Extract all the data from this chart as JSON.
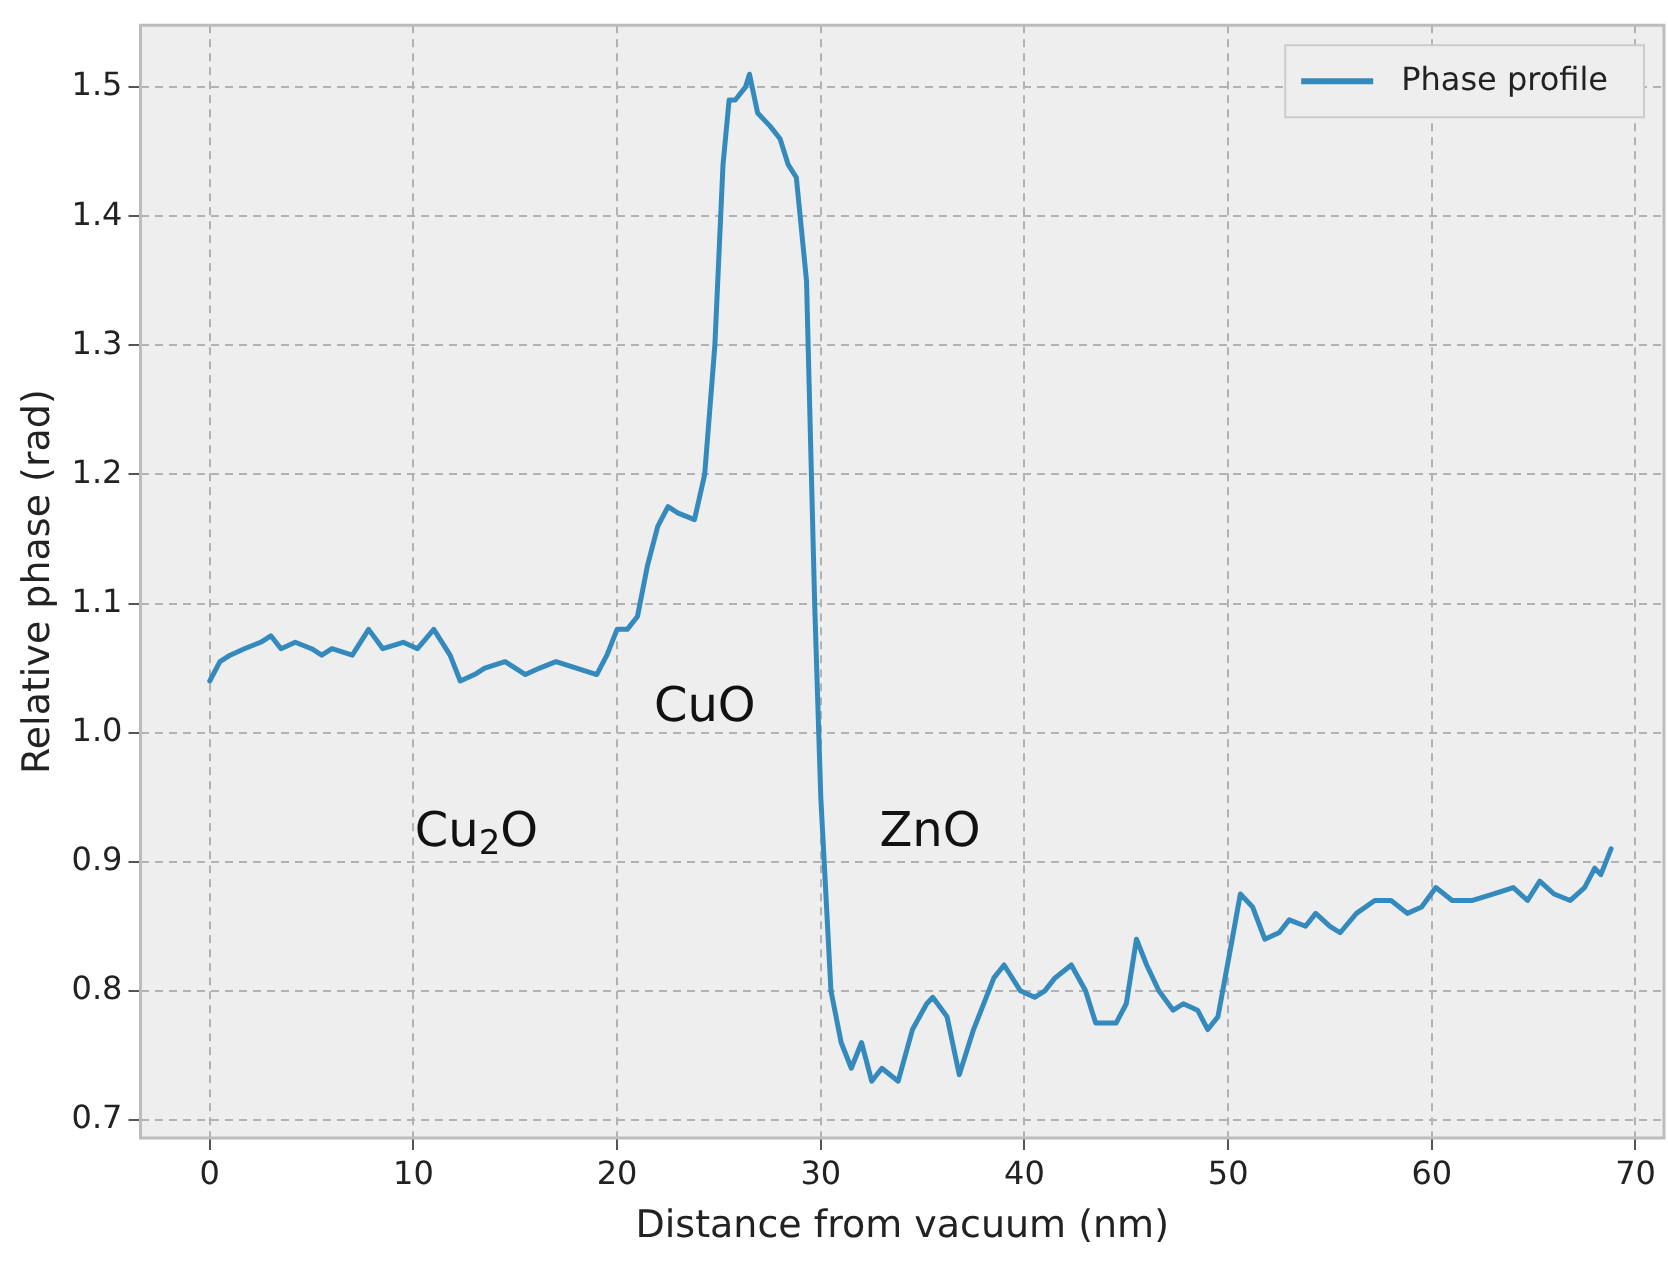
{
  "chart_data": {
    "type": "line",
    "xlabel": "Distance from vacuum (nm)",
    "ylabel": "Relative phase (rad)",
    "xlim": [
      -3.4,
      71.4
    ],
    "ylim": [
      0.686,
      1.548
    ],
    "xticks": [
      0,
      10,
      20,
      30,
      40,
      50,
      60,
      70
    ],
    "yticks": [
      0.7,
      0.8,
      0.9,
      {
        "value": 1,
        "label": "1.0"
      },
      1.1,
      1.2,
      1.3,
      1.4,
      1.5
    ],
    "grid": true,
    "legend": "top right",
    "line_style": "solid",
    "marker": "none",
    "annotations": [
      "Cu$_{2}$O",
      "CuO",
      "ZnO"
    ],
    "series": [
      {
        "name": "Phase profile",
        "color": "#348abd",
        "x": [
          0,
          0.5,
          1,
          1.7,
          2.5,
          3,
          3.5,
          4.2,
          5,
          5.5,
          6,
          7,
          7.8,
          8.5,
          9.5,
          10.2,
          11,
          11.8,
          12.3,
          13,
          13.5,
          14.5,
          15.5,
          16.2,
          17,
          18,
          19,
          19.5,
          20,
          20.5,
          21,
          21.5,
          22,
          22.5,
          23,
          23.8,
          24.3,
          24.8,
          25.2,
          25.5,
          25.8,
          26.3,
          26.5,
          26.9,
          27.5,
          28,
          28.4,
          28.8,
          29.3,
          29.7,
          30,
          30.5,
          31,
          31.5,
          32,
          32.5,
          33,
          33.8,
          34.5,
          35.2,
          35.5,
          36.2,
          36.8,
          37.5,
          38.5,
          39,
          39.8,
          40.5,
          41,
          41.5,
          42.3,
          43,
          43.5,
          44.5,
          45,
          45.5,
          46,
          46.6,
          47.3,
          47.8,
          48.5,
          49,
          49.5,
          50.2,
          50.6,
          51.2,
          51.8,
          52.5,
          53,
          53.8,
          54.3,
          55,
          55.5,
          56.3,
          57.2,
          58,
          58.8,
          59.5,
          60.2,
          61,
          62,
          63,
          64,
          64.7,
          65.3,
          66,
          66.8,
          67.5,
          68,
          68.3,
          68.8
        ],
        "values": [
          1.04,
          1.055,
          1.06,
          1.065,
          1.07,
          1.075,
          1.065,
          1.07,
          1.065,
          1.06,
          1.065,
          1.06,
          1.08,
          1.065,
          1.07,
          1.065,
          1.08,
          1.06,
          1.04,
          1.045,
          1.05,
          1.055,
          1.045,
          1.05,
          1.055,
          1.05,
          1.045,
          1.06,
          1.08,
          1.08,
          1.09,
          1.13,
          1.16,
          1.175,
          1.17,
          1.165,
          1.2,
          1.3,
          1.44,
          1.49,
          1.49,
          1.5,
          1.51,
          1.48,
          1.47,
          1.46,
          1.44,
          1.43,
          1.35,
          1.1,
          0.95,
          0.8,
          0.76,
          0.74,
          0.76,
          0.73,
          0.74,
          0.73,
          0.77,
          0.79,
          0.795,
          0.78,
          0.735,
          0.77,
          0.81,
          0.82,
          0.8,
          0.795,
          0.8,
          0.81,
          0.82,
          0.8,
          0.775,
          0.775,
          0.79,
          0.84,
          0.82,
          0.8,
          0.785,
          0.79,
          0.785,
          0.77,
          0.78,
          0.84,
          0.875,
          0.865,
          0.84,
          0.845,
          0.855,
          0.85,
          0.86,
          0.85,
          0.845,
          0.86,
          0.87,
          0.87,
          0.86,
          0.865,
          0.88,
          0.87,
          0.87,
          0.875,
          0.88,
          0.87,
          0.885,
          0.875,
          0.87,
          0.88,
          0.895,
          0.89,
          0.91
        ]
      }
    ]
  }
}
